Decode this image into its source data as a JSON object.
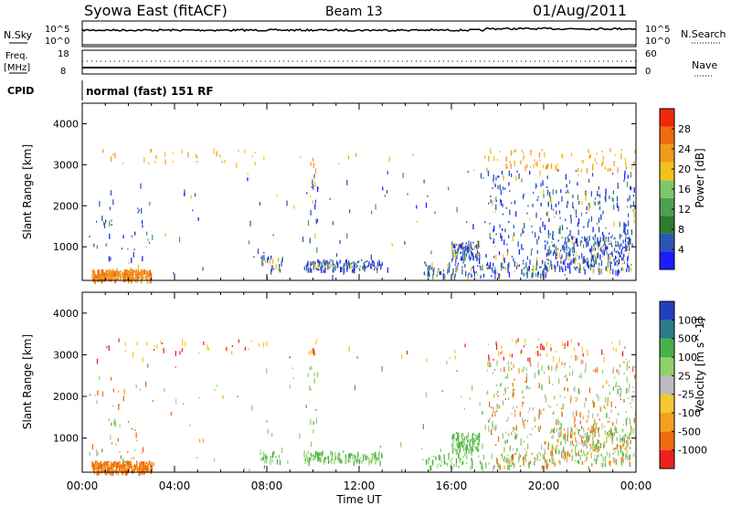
{
  "header": {
    "station": "Syowa East (fitACF)",
    "beam": "Beam 13",
    "date": "01/Aug/2011"
  },
  "noise_panel": {
    "left_label": "N.Sky",
    "left_ticks": [
      "10^5",
      "10^0"
    ],
    "right_label": "N.Search",
    "right_ticks": [
      "10^5",
      "10^0"
    ]
  },
  "freq_panel": {
    "left_label": "Freq.",
    "left_unit": "[MHz]",
    "left_ticks": [
      "18",
      "8"
    ],
    "right_label": "Nave",
    "right_ticks": [
      "60",
      "0"
    ]
  },
  "cpid": {
    "label": "CPID",
    "mode": "normal (fast) 151 RF"
  },
  "x_axis": {
    "label": "Time UT",
    "ticks": [
      "00:00",
      "04:00",
      "08:00",
      "12:00",
      "16:00",
      "20:00",
      "00:00"
    ],
    "range_hours": [
      0,
      24
    ]
  },
  "colors": {
    "power": [
      "#1c1cff",
      "#2b56b8",
      "#2e7a2e",
      "#4aa050",
      "#7fc66b",
      "#f3c21c",
      "#f39a1c",
      "#f06a10",
      "#ee2a0a"
    ],
    "velocity": [
      "#ee2020",
      "#f06a10",
      "#f4a020",
      "#f3c830",
      "#bcbcbc",
      "#8fd16a",
      "#4ab04a",
      "#2b7a8a",
      "#2040c0"
    ]
  },
  "chart_data": [
    {
      "type": "heatmap",
      "name": "power",
      "ylabel": "Slant Range [km]",
      "ylim": [
        180,
        4500
      ],
      "yticks": [
        1000,
        2000,
        3000,
        4000
      ],
      "colorbar_label": "Power [dB]",
      "colorbar_ticks": [
        "4",
        "8",
        "12",
        "16",
        "20",
        "24",
        "28"
      ],
      "colorbar_range": [
        0,
        30
      ]
    },
    {
      "type": "heatmap",
      "name": "velocity",
      "ylabel": "Slant Range [km]",
      "ylim": [
        180,
        4500
      ],
      "yticks": [
        1000,
        2000,
        3000,
        4000
      ],
      "colorbar_label": "Velocity [m s^-1]",
      "colorbar_ticks": [
        "1000",
        "500",
        "100",
        "25",
        "-25",
        "-100",
        "-500",
        "-1000"
      ]
    }
  ]
}
